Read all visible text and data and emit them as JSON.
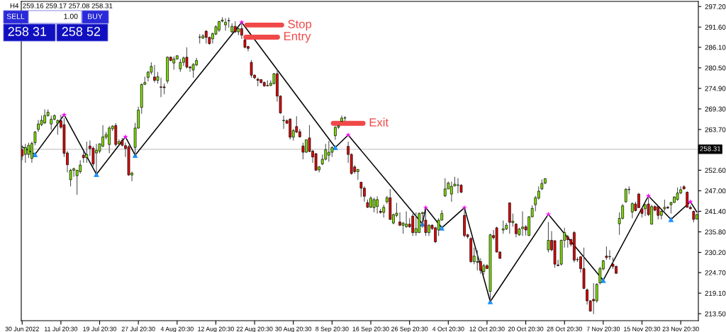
{
  "chart_data": {
    "type": "candlestick",
    "categories": [
      "30 Jun 2022",
      null,
      null,
      null,
      null,
      null,
      null,
      null,
      null,
      null,
      null,
      null,
      "11 Jul 20:30",
      null,
      null,
      null,
      null,
      null,
      null,
      null,
      null,
      null,
      null,
      null,
      "19 Jul 20:30",
      null,
      null,
      null,
      null,
      null,
      null,
      null,
      null,
      null,
      null,
      null,
      "27 Jul 20:30",
      null,
      null,
      null,
      null,
      null,
      null,
      null,
      null,
      null,
      null,
      null,
      "4 Aug 20:30",
      null,
      null,
      null,
      null,
      null,
      null,
      null,
      null,
      null,
      null,
      null,
      "12 Aug 20:30",
      null,
      null,
      null,
      null,
      null,
      null,
      null,
      null,
      null,
      null,
      null,
      "22 Aug 20:30",
      null,
      null,
      null,
      null,
      null,
      null,
      null,
      null,
      null,
      null,
      null,
      "30 Aug 20:30",
      null,
      null,
      null,
      null,
      null,
      null,
      null,
      null,
      null,
      null,
      null,
      "8 Sep 20:30",
      null,
      null,
      null,
      null,
      null,
      null,
      null,
      null,
      null,
      null,
      null,
      "16 Sep 20:30",
      null,
      null,
      null,
      null,
      null,
      null,
      null,
      null,
      null,
      null,
      null,
      "26 Sep 20:30",
      null,
      null,
      null,
      null,
      null,
      null,
      null,
      null,
      null,
      null,
      null,
      "4 Oct 20:30",
      null,
      null,
      null,
      null,
      null,
      null,
      null,
      null,
      null,
      null,
      null,
      "12 Oct 20:30",
      null,
      null,
      null,
      null,
      null,
      null,
      null,
      null,
      null,
      null,
      null,
      "20 Oct 20:30",
      null,
      null,
      null,
      null,
      null,
      null,
      null,
      null,
      null,
      null,
      null,
      "28 Oct 20:30",
      null,
      null,
      null,
      null,
      null,
      null,
      null,
      null,
      null,
      null,
      null,
      "7 Nov 20:30",
      null,
      null,
      null,
      null,
      null,
      null,
      null,
      null,
      null,
      null,
      null,
      "15 Nov 20:30",
      null,
      null,
      null,
      null,
      null,
      null,
      null,
      null,
      null,
      null,
      null,
      "23 Nov 20:30",
      null,
      null,
      null,
      null,
      null
    ],
    "ohlc": [
      [
        258.2,
        259.4,
        255.3,
        256.5
      ],
      [
        256.9,
        259.8,
        254.6,
        258.8
      ],
      [
        256.9,
        260.1,
        255.9,
        259.4
      ],
      [
        255.8,
        260.4,
        254.6,
        259.9
      ],
      [
        260.1,
        263.3,
        259.4,
        263.0
      ],
      [
        263.7,
        266.3,
        263.0,
        265.2
      ],
      [
        265.0,
        267.5,
        264.6,
        266.2
      ],
      [
        265.5,
        269.2,
        265.2,
        267.5
      ],
      [
        267.5,
        269.2,
        267.2,
        268.4
      ],
      [
        265.2,
        267.5,
        263.6,
        266.5
      ],
      [
        266.5,
        267.8,
        266.2,
        267.5
      ],
      [
        265.4,
        266.5,
        262.3,
        266.1
      ],
      [
        266.1,
        267.7,
        263.9,
        264.3
      ],
      [
        265.0,
        266.8,
        256.2,
        257.2
      ],
      [
        257.3,
        257.8,
        252.0,
        254.1
      ],
      [
        250.0,
        253.0,
        248.2,
        252.6
      ],
      [
        252.6,
        253.3,
        250.8,
        253.0
      ],
      [
        251.1,
        252.7,
        245.9,
        252.6
      ],
      [
        252.2,
        255.3,
        251.7,
        254.0
      ],
      [
        256.7,
        257.8,
        254.6,
        256.0
      ],
      [
        256.0,
        260.4,
        254.6,
        256.9
      ],
      [
        259.2,
        260.7,
        256.5,
        258.5
      ],
      [
        258.6,
        259.1,
        253.6,
        254.3
      ],
      [
        257.3,
        259.8,
        251.7,
        258.0
      ],
      [
        257.8,
        259.9,
        257.2,
        259.8
      ],
      [
        259.2,
        264.9,
        258.8,
        261.7
      ],
      [
        261.6,
        263.0,
        261.0,
        262.3
      ],
      [
        259.6,
        264.6,
        257.2,
        264.1
      ],
      [
        263.9,
        264.9,
        263.3,
        264.6
      ],
      [
        264.8,
        265.4,
        259.1,
        259.6
      ],
      [
        259.8,
        261.0,
        259.4,
        260.4
      ],
      [
        260.7,
        261.4,
        259.1,
        259.4
      ],
      [
        259.3,
        260.1,
        256.2,
        258.5
      ],
      [
        259.0,
        259.4,
        251.1,
        251.3
      ],
      [
        251.3,
        252.2,
        249.6,
        251.8
      ],
      [
        258.8,
        265.5,
        256.5,
        264.1
      ],
      [
        264.1,
        269.9,
        263.9,
        269.0
      ],
      [
        269.7,
        276.2,
        268.0,
        276.0
      ],
      [
        276.0,
        278.1,
        275.8,
        276.5
      ],
      [
        277.9,
        279.7,
        276.8,
        279.3
      ],
      [
        279.3,
        282.0,
        278.7,
        280.9
      ],
      [
        278.0,
        281.3,
        276.5,
        277.1
      ],
      [
        277.1,
        279.4,
        276.2,
        278.1
      ],
      [
        275.3,
        277.8,
        272.5,
        275.2
      ],
      [
        275.3,
        276.2,
        273.3,
        275.1
      ],
      [
        276.9,
        283.6,
        276.2,
        283.4
      ],
      [
        283.4,
        283.6,
        282.3,
        282.5
      ],
      [
        281.8,
        283.6,
        280.0,
        282.9
      ],
      [
        282.9,
        283.9,
        282.8,
        283.8
      ],
      [
        280.2,
        282.9,
        279.4,
        282.0
      ],
      [
        282.0,
        283.6,
        281.0,
        283.2
      ],
      [
        283.4,
        286.1,
        280.3,
        280.7
      ],
      [
        280.7,
        281.0,
        279.4,
        280.5
      ],
      [
        279.9,
        281.8,
        277.8,
        281.4
      ],
      [
        281.3,
        283.2,
        281.0,
        282.5
      ],
      [
        288.8,
        289.7,
        287.1,
        288.9
      ],
      [
        288.6,
        289.7,
        288.4,
        289.2
      ],
      [
        290.5,
        290.8,
        287.1,
        288.8
      ],
      [
        288.8,
        289.0,
        286.8,
        287.1
      ],
      [
        288.4,
        290.1,
        287.1,
        289.8
      ],
      [
        289.7,
        292.1,
        289.4,
        291.7
      ],
      [
        290.8,
        293.3,
        290.3,
        293.1
      ],
      [
        293.2,
        294.3,
        292.9,
        293.5
      ],
      [
        292.2,
        294.0,
        290.6,
        292.9
      ],
      [
        293.3,
        294.2,
        291.4,
        293.4
      ],
      [
        290.3,
        292.6,
        290.0,
        291.8
      ],
      [
        291.8,
        293.2,
        290.0,
        290.3
      ],
      [
        290.3,
        291.4,
        289.4,
        291.2
      ],
      [
        291.2,
        292.9,
        288.4,
        289.4
      ],
      [
        288.1,
        288.4,
        285.8,
        286.1
      ],
      [
        286.3,
        286.5,
        285.0,
        285.8
      ],
      [
        282.0,
        282.6,
        277.8,
        278.5
      ],
      [
        278.5,
        278.7,
        277.4,
        277.8
      ],
      [
        277.4,
        277.8,
        275.5,
        277.1
      ],
      [
        277.3,
        277.4,
        276.2,
        276.5
      ],
      [
        276.5,
        276.8,
        275.3,
        275.6
      ],
      [
        275.7,
        277.1,
        275.5,
        275.6
      ],
      [
        275.7,
        277.1,
        275.5,
        276.3
      ],
      [
        276.2,
        279.1,
        276.0,
        278.9
      ],
      [
        278.9,
        280.0,
        271.3,
        272.8
      ],
      [
        272.8,
        273.0,
        268.0,
        268.2
      ],
      [
        266.1,
        267.5,
        263.9,
        266.2
      ],
      [
        266.1,
        266.5,
        265.2,
        265.4
      ],
      [
        266.5,
        266.8,
        261.0,
        261.6
      ],
      [
        261.6,
        263.9,
        260.7,
        263.4
      ],
      [
        264.5,
        267.3,
        262.7,
        263.0
      ],
      [
        263.1,
        263.9,
        261.5,
        261.7
      ],
      [
        259.2,
        260.1,
        255.6,
        257.5
      ],
      [
        257.5,
        261.0,
        257.3,
        260.9
      ],
      [
        261.4,
        264.9,
        257.5,
        257.7
      ],
      [
        257.8,
        258.2,
        254.6,
        256.2
      ],
      [
        257.1,
        257.3,
        252.4,
        252.6
      ],
      [
        252.7,
        253.8,
        252.0,
        253.5
      ],
      [
        254.3,
        256.9,
        254.0,
        255.6
      ],
      [
        255.6,
        259.8,
        255.3,
        258.2
      ],
      [
        256.7,
        260.6,
        254.9,
        257.5
      ],
      [
        257.5,
        259.1,
        256.2,
        258.8
      ],
      [
        262.0,
        264.6,
        260.9,
        264.3
      ],
      [
        264.3,
        264.9,
        263.9,
        264.7
      ],
      [
        265.9,
        267.5,
        265.9,
        266.8
      ],
      [
        266.8,
        267.3,
        266.0,
        266.9
      ],
      [
        259.1,
        260.4,
        254.6,
        256.9
      ],
      [
        256.9,
        257.2,
        251.4,
        251.7
      ],
      [
        253.5,
        254.0,
        251.7,
        252.2
      ],
      [
        252.2,
        253.0,
        250.0,
        252.8
      ],
      [
        249.3,
        249.5,
        245.3,
        247.7
      ],
      [
        247.7,
        248.2,
        244.0,
        245.5
      ],
      [
        243.8,
        244.6,
        242.3,
        242.5
      ],
      [
        242.5,
        245.5,
        242.3,
        245.0
      ],
      [
        242.4,
        245.1,
        241.1,
        244.6
      ],
      [
        242.7,
        245.5,
        240.8,
        244.6
      ],
      [
        241.4,
        242.1,
        240.8,
        241.1
      ],
      [
        241.1,
        243.2,
        239.7,
        242.5
      ],
      [
        244.0,
        245.6,
        243.5,
        245.1
      ],
      [
        245.1,
        247.5,
        239.0,
        239.2
      ],
      [
        238.2,
        240.8,
        237.9,
        240.5
      ],
      [
        240.3,
        243.7,
        239.8,
        240.9
      ],
      [
        238.5,
        241.1,
        237.4,
        237.6
      ],
      [
        237.6,
        238.5,
        235.3,
        238.2
      ],
      [
        237.2,
        241.4,
        236.9,
        237.9
      ],
      [
        237.9,
        239.5,
        236.9,
        237.2
      ],
      [
        240.1,
        240.8,
        234.7,
        235.6
      ],
      [
        235.6,
        241.1,
        234.7,
        236.7
      ],
      [
        235.6,
        241.1,
        235.6,
        240.8
      ],
      [
        240.8,
        241.2,
        236.9,
        241.1
      ],
      [
        239.0,
        242.4,
        234.7,
        235.6
      ],
      [
        235.6,
        237.9,
        234.7,
        237.6
      ],
      [
        237.6,
        237.9,
        236.3,
        236.7
      ],
      [
        236.9,
        237.2,
        232.7,
        233.1
      ],
      [
        236.3,
        239.5,
        234.7,
        239.0
      ],
      [
        239.0,
        241.7,
        238.9,
        240.8
      ],
      [
        245.6,
        250.4,
        245.3,
        247.5
      ],
      [
        247.5,
        249.5,
        247.5,
        249.1
      ],
      [
        246.1,
        249.5,
        244.0,
        248.2
      ],
      [
        248.3,
        250.8,
        248.2,
        248.8
      ],
      [
        248.5,
        250.4,
        246.3,
        248.6
      ],
      [
        248.5,
        248.8,
        246.4,
        246.6
      ],
      [
        240.3,
        242.4,
        234.3,
        234.8
      ],
      [
        235.0,
        235.3,
        234.0,
        234.5
      ],
      [
        234.0,
        234.3,
        227.3,
        227.7
      ],
      [
        227.7,
        231.5,
        227.0,
        229.2
      ],
      [
        227.5,
        230.8,
        225.3,
        227.7
      ],
      [
        227.7,
        228.6,
        224.4,
        225.3
      ],
      [
        225.0,
        227.1,
        224.1,
        226.6
      ],
      [
        226.6,
        227.0,
        225.7,
        225.8
      ],
      [
        219.6,
        235.3,
        216.8,
        235.0
      ],
      [
        234.8,
        236.3,
        233.7,
        234.2
      ],
      [
        236.9,
        237.2,
        230.2,
        230.3
      ],
      [
        230.3,
        230.5,
        228.4,
        228.6
      ],
      [
        236.3,
        238.9,
        235.3,
        236.6
      ],
      [
        236.6,
        238.2,
        236.3,
        237.6
      ],
      [
        243.7,
        243.8,
        235.3,
        238.4
      ],
      [
        238.3,
        240.8,
        237.2,
        238.7
      ],
      [
        237.9,
        238.2,
        234.3,
        235.3
      ],
      [
        235.0,
        236.9,
        234.7,
        236.6
      ],
      [
        236.7,
        241.4,
        234.7,
        237.1
      ],
      [
        237.2,
        237.6,
        234.8,
        236.3
      ],
      [
        234.8,
        240.1,
        234.7,
        239.9
      ],
      [
        239.9,
        243.0,
        239.8,
        242.2
      ],
      [
        243.2,
        245.6,
        241.4,
        245.1
      ],
      [
        245.0,
        248.2,
        244.6,
        246.9
      ],
      [
        247.5,
        250.1,
        247.2,
        249.0
      ],
      [
        249.1,
        250.4,
        248.8,
        250.3
      ],
      [
        230.9,
        238.5,
        230.2,
        233.5
      ],
      [
        233.5,
        236.0,
        230.5,
        230.9
      ],
      [
        233.4,
        233.5,
        226.0,
        227.0
      ],
      [
        226.8,
        228.2,
        226.4,
        226.6
      ],
      [
        227.0,
        233.7,
        226.6,
        233.5
      ],
      [
        233.5,
        236.9,
        231.5,
        235.6
      ],
      [
        234.5,
        235.0,
        231.5,
        233.7
      ],
      [
        233.7,
        234.0,
        231.8,
        232.4
      ],
      [
        235.6,
        236.0,
        227.5,
        228.1
      ],
      [
        228.2,
        228.9,
        227.6,
        228.3
      ],
      [
        229.0,
        229.2,
        224.7,
        225.8
      ],
      [
        225.8,
        231.5,
        220.2,
        220.4
      ],
      [
        220.0,
        220.4,
        216.0,
        217.0
      ],
      [
        217.0,
        217.2,
        214.1,
        214.2
      ],
      [
        217.4,
        221.8,
        213.4,
        217.0
      ],
      [
        217.0,
        221.8,
        216.5,
        221.5
      ],
      [
        221.9,
        226.3,
        221.5,
        225.8
      ],
      [
        225.7,
        228.2,
        225.3,
        227.9
      ],
      [
        229.2,
        231.8,
        228.2,
        228.8
      ],
      [
        229.0,
        230.8,
        228.2,
        229.1
      ],
      [
        227.0,
        228.8,
        225.7,
        226.4
      ],
      [
        226.4,
        226.6,
        224.4,
        224.5
      ],
      [
        238.0,
        241.1,
        235.0,
        239.5
      ],
      [
        239.5,
        243.4,
        239.2,
        242.9
      ],
      [
        244.0,
        247.7,
        243.7,
        247.4
      ],
      [
        247.3,
        248.2,
        246.1,
        247.4
      ],
      [
        241.2,
        243.8,
        239.5,
        243.5
      ],
      [
        243.4,
        244.0,
        241.4,
        241.6
      ],
      [
        246.1,
        246.4,
        242.3,
        242.4
      ],
      [
        242.1,
        242.4,
        239.7,
        240.8
      ],
      [
        242.1,
        243.4,
        240.1,
        243.2
      ],
      [
        243.4,
        245.1,
        240.1,
        240.5
      ],
      [
        237.9,
        243.2,
        237.8,
        242.7
      ],
      [
        242.7,
        243.0,
        241.4,
        241.7
      ],
      [
        242.7,
        243.0,
        239.2,
        240.3
      ],
      [
        240.3,
        241.7,
        239.2,
        241.4
      ],
      [
        242.1,
        244.6,
        241.4,
        242.5
      ],
      [
        242.5,
        242.9,
        242.1,
        242.3
      ],
      [
        243.2,
        244.0,
        240.8,
        243.8
      ],
      [
        243.8,
        245.5,
        243.7,
        245.3
      ],
      [
        244.6,
        247.9,
        244.3,
        246.4
      ],
      [
        246.4,
        248.2,
        246.1,
        247.3
      ],
      [
        248.1,
        248.5,
        247.4,
        247.5
      ],
      [
        246.6,
        246.8,
        242.4,
        242.5
      ],
      [
        242.5,
        243.0,
        241.9,
        242.1
      ],
      [
        241.4,
        241.6,
        238.4,
        239.2
      ],
      [
        239.3,
        240.8,
        239.2,
        240.5
      ]
    ],
    "colors": [
      "#e00000",
      "#80e000",
      "#80e000",
      "#80e000",
      "#80e000",
      "#80e000",
      "#80e000",
      "#80e000",
      "#80e000",
      "#80e000",
      "#80e000",
      "#80e000",
      "#e00000",
      "#e00000",
      "#e00000",
      "#80e000",
      "#80e000",
      "#80e000",
      "#80e000",
      "#e00000",
      "#80e000",
      "#e00000",
      "#e00000",
      "#80e000",
      "#80e000",
      "#80e000",
      "#80e000",
      "#80e000",
      "#80e000",
      "#e00000",
      "#80e000",
      "#e00000",
      "#e00000",
      "#e00000",
      "#80e000",
      "#80e000",
      "#80e000",
      "#80e000",
      "#80e000",
      "#80e000",
      "#80e000",
      "#e00000",
      "#80e000",
      "#e00000",
      "#e00000",
      "#80e000",
      "#e00000",
      "#80e000",
      "#80e000",
      "#80e000",
      "#80e000",
      "#e00000",
      "#e00000",
      "#80e000",
      "#80e000",
      "#80e000",
      "#80e000",
      "#e00000",
      "#e00000",
      "#80e000",
      "#80e000",
      "#80e000",
      "#80e000",
      "#80e000",
      "#80e000",
      "#80e000",
      "#e00000",
      "#80e000",
      "#e00000",
      "#e00000",
      "#e00000",
      "#e00000",
      "#e00000",
      "#e00000",
      "#e00000",
      "#e00000",
      "#e00000",
      "#80e000",
      "#80e000",
      "#e00000",
      "#e00000",
      "#80e000",
      "#e00000",
      "#e00000",
      "#80e000",
      "#e00000",
      "#e00000",
      "#e00000",
      "#80e000",
      "#e00000",
      "#e00000",
      "#e00000",
      "#80e000",
      "#80e000",
      "#80e000",
      "#80e000",
      "#80e000",
      "#80e000",
      "#80e000",
      "#80e000",
      "#80e000",
      "#e00000",
      "#e00000",
      "#e00000",
      "#80e000",
      "#e00000",
      "#e00000",
      "#e00000",
      "#80e000",
      "#80e000",
      "#80e000",
      "#e00000",
      "#80e000",
      "#80e000",
      "#e00000",
      "#80e000",
      "#80e000",
      "#e00000",
      "#80e000",
      "#80e000",
      "#e00000",
      "#e00000",
      "#80e000",
      "#80e000",
      "#80e000",
      "#e00000",
      "#80e000",
      "#e00000",
      "#e00000",
      "#80e000",
      "#80e000",
      "#80e000",
      "#80e000",
      "#80e000",
      "#80e000",
      "#80e000",
      "#e00000",
      "#e00000",
      "#e00000",
      "#e00000",
      "#80e000",
      "#80e000",
      "#e00000",
      "#80e000",
      "#e00000",
      "#80e000",
      "#e00000",
      "#e00000",
      "#e00000",
      "#80e000",
      "#80e000",
      "#e00000",
      "#80e000",
      "#e00000",
      "#80e000",
      "#80e000",
      "#e00000",
      "#80e000",
      "#80e000",
      "#80e000",
      "#80e000",
      "#80e000",
      "#80e000",
      "#80e000",
      "#e00000",
      "#e00000",
      "#e00000",
      "#80e000",
      "#80e000",
      "#e00000",
      "#e00000",
      "#e00000",
      "#80e000",
      "#e00000",
      "#e00000",
      "#e00000",
      "#e00000",
      "#e00000",
      "#80e000",
      "#80e000",
      "#80e000",
      "#e00000",
      "#80e000",
      "#e00000",
      "#e00000",
      "#80e000",
      "#80e000",
      "#80e000",
      "#80e000",
      "#80e000",
      "#e00000",
      "#e00000",
      "#e00000",
      "#80e000",
      "#e00000",
      "#80e000",
      "#e00000",
      "#e00000",
      "#80e000",
      "#80e000",
      "#e00000",
      "#80e000",
      "#80e000",
      "#80e000",
      "#80e000",
      "#e00000",
      "#e00000",
      "#e00000",
      "#e00000",
      "#80e000"
    ],
    "series": [
      {
        "type": "line",
        "color": "#000000",
        "values": [
          259.0,
          null,
          null,
          null,
          256.9,
          null,
          null,
          null,
          null,
          null,
          null,
          null,
          null,
          267.7,
          null,
          null,
          null,
          null,
          null,
          null,
          null,
          null,
          null,
          251.5,
          null,
          null,
          null,
          null,
          null,
          null,
          null,
          null,
          261.7,
          null,
          null,
          256.7,
          null,
          null,
          null,
          null,
          null,
          null,
          null,
          null,
          null,
          null,
          null,
          null,
          null,
          null,
          null,
          null,
          null,
          null,
          null,
          null,
          null,
          null,
          null,
          null,
          null,
          null,
          null,
          null,
          null,
          null,
          null,
          null,
          292.9,
          null,
          null,
          null,
          null,
          null,
          null,
          null,
          null,
          null,
          null,
          null,
          null,
          null,
          null,
          null,
          null,
          null,
          null,
          null,
          null,
          null,
          null,
          null,
          null,
          null,
          null,
          null,
          null,
          258.8,
          null,
          null,
          null,
          262.2,
          null,
          null,
          null,
          null,
          null,
          null,
          null,
          null,
          null,
          null,
          null,
          null,
          null,
          null,
          null,
          null,
          null,
          null,
          null,
          null,
          null,
          null,
          238.0,
          242.4,
          null,
          null,
          null,
          null,
          236.9,
          null,
          null,
          null,
          null,
          null,
          null,
          242.4,
          null,
          null,
          null,
          null,
          null,
          null,
          null,
          216.8,
          null,
          null,
          null,
          null,
          null,
          null,
          null,
          null,
          null,
          null,
          null,
          null,
          null,
          null,
          null,
          null,
          null,
          240.6,
          null,
          null,
          null,
          null,
          null,
          null,
          null,
          null,
          null,
          null,
          null,
          null,
          null,
          null,
          null,
          null,
          222.6,
          null,
          null,
          null,
          null,
          null,
          null,
          null,
          null,
          null,
          null,
          null,
          null,
          null,
          245.6,
          null,
          null,
          null,
          null,
          null,
          null,
          239.2,
          null,
          null,
          null,
          null,
          null,
          244.0,
          null,
          241.2
        ]
      },
      {
        "type": "scatter",
        "color": "#ff00ff",
        "marker": "star",
        "values": [
          null,
          null,
          null,
          null,
          null,
          null,
          null,
          null,
          null,
          null,
          null,
          null,
          null,
          267.7,
          null,
          null,
          null,
          null,
          null,
          null,
          null,
          null,
          null,
          null,
          null,
          null,
          null,
          null,
          null,
          null,
          null,
          null,
          261.7,
          null,
          null,
          null,
          null,
          null,
          null,
          null,
          null,
          null,
          null,
          null,
          null,
          null,
          null,
          null,
          null,
          null,
          null,
          null,
          null,
          null,
          null,
          null,
          null,
          null,
          null,
          null,
          null,
          null,
          null,
          null,
          null,
          null,
          null,
          null,
          292.9,
          null,
          null,
          null,
          null,
          null,
          null,
          null,
          null,
          null,
          null,
          null,
          null,
          null,
          null,
          null,
          null,
          null,
          null,
          null,
          null,
          null,
          null,
          null,
          null,
          null,
          null,
          null,
          null,
          null,
          null,
          null,
          null,
          262.2,
          null,
          null,
          null,
          null,
          null,
          null,
          null,
          null,
          null,
          null,
          null,
          null,
          null,
          null,
          null,
          null,
          null,
          null,
          null,
          null,
          null,
          null,
          null,
          242.4,
          null,
          null,
          null,
          null,
          null,
          null,
          null,
          null,
          null,
          null,
          null,
          242.4,
          null,
          null,
          null,
          null,
          null,
          null,
          null,
          null,
          null,
          null,
          null,
          null,
          null,
          null,
          null,
          null,
          null,
          null,
          null,
          null,
          null,
          null,
          null,
          null,
          null,
          240.6,
          null,
          null,
          null,
          null,
          null,
          null,
          null,
          null,
          null,
          null,
          null,
          null,
          null,
          null,
          null,
          null,
          null,
          null,
          null,
          null,
          null,
          null,
          null,
          null,
          null,
          null,
          null,
          null,
          null,
          null,
          245.6,
          null,
          null,
          null,
          null,
          null,
          null,
          null,
          null,
          null,
          null,
          null,
          null,
          244.0,
          null,
          null
        ]
      },
      {
        "type": "scatter",
        "color": "#1e90ff",
        "marker": "triangle",
        "values": [
          null,
          null,
          null,
          null,
          256.9,
          null,
          null,
          null,
          null,
          null,
          null,
          null,
          null,
          null,
          null,
          null,
          null,
          null,
          null,
          null,
          null,
          null,
          null,
          251.5,
          null,
          null,
          null,
          null,
          null,
          null,
          null,
          null,
          null,
          null,
          null,
          256.7,
          null,
          null,
          null,
          null,
          null,
          null,
          null,
          null,
          null,
          null,
          null,
          null,
          null,
          null,
          null,
          null,
          null,
          null,
          null,
          null,
          null,
          null,
          null,
          null,
          null,
          null,
          null,
          null,
          null,
          null,
          null,
          null,
          null,
          null,
          null,
          null,
          null,
          null,
          null,
          null,
          null,
          null,
          null,
          null,
          null,
          null,
          null,
          null,
          null,
          null,
          null,
          null,
          null,
          null,
          null,
          null,
          null,
          null,
          null,
          null,
          null,
          258.8,
          null,
          null,
          null,
          null,
          null,
          null,
          null,
          null,
          null,
          null,
          null,
          null,
          null,
          null,
          null,
          null,
          null,
          null,
          null,
          null,
          null,
          null,
          null,
          null,
          null,
          null,
          238.0,
          null,
          null,
          null,
          null,
          null,
          236.9,
          null,
          null,
          null,
          null,
          null,
          null,
          null,
          null,
          null,
          null,
          null,
          null,
          null,
          null,
          216.8,
          null,
          null,
          null,
          null,
          null,
          null,
          null,
          null,
          null,
          null,
          null,
          null,
          null,
          null,
          null,
          null,
          null,
          null,
          null,
          null,
          null,
          null,
          null,
          null,
          null,
          null,
          null,
          null,
          null,
          null,
          null,
          null,
          null,
          null,
          222.6,
          null,
          null,
          null,
          null,
          null,
          null,
          null,
          null,
          null,
          null,
          null,
          null,
          null,
          null,
          null,
          null,
          null,
          null,
          null,
          null,
          239.2,
          null,
          null,
          null,
          null,
          null,
          null,
          null,
          null
        ]
      }
    ],
    "ylim": [
      211.6,
      298.6
    ],
    "yticks": [
      {
        "value": 297.2,
        "label": "297.20"
      },
      {
        "value": 291.6,
        "label": "291.60"
      },
      {
        "value": 286.1,
        "label": "286.10"
      },
      {
        "value": 280.5,
        "label": "280.50"
      },
      {
        "value": 274.9,
        "label": "274.90"
      },
      {
        "value": 269.3,
        "label": "269.30"
      },
      {
        "value": 263.7,
        "label": "263.70"
      },
      {
        "value": 252.6,
        "label": "252.60"
      },
      {
        "value": 247.0,
        "label": "247.00"
      },
      {
        "value": 241.4,
        "label": "241.40"
      },
      {
        "value": 235.8,
        "label": "235.80"
      },
      {
        "value": 230.2,
        "label": "230.20"
      },
      {
        "value": 224.7,
        "label": "224.70"
      },
      {
        "value": 219.1,
        "label": "219.10"
      },
      {
        "value": 213.5,
        "label": "213.50"
      }
    ],
    "ref_lines": [
      {
        "axis": "y",
        "value": 258.31,
        "label": "258.31",
        "color": "#c8c8c8"
      }
    ],
    "annotations": [
      "H4  259.16 259.17 257.08 258.31",
      "SELL",
      "1.00",
      "BUY",
      "258 31",
      "258 52",
      "Stop",
      "Entry",
      "Exit"
    ],
    "grid": false,
    "legend": false
  }
}
